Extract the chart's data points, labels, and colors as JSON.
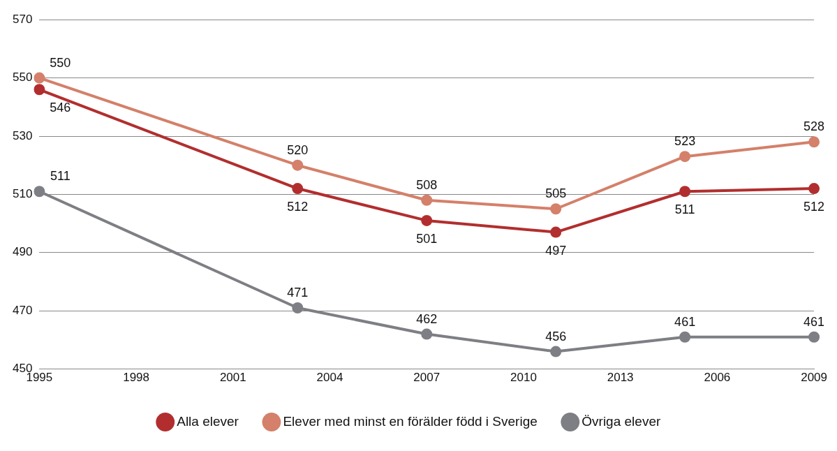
{
  "chart_data": {
    "type": "line",
    "categories": [
      "1995",
      null,
      null,
      "1998",
      null,
      null,
      "2001",
      null,
      null,
      "2004",
      null,
      null,
      "2007",
      null,
      null,
      "2010",
      null,
      null,
      "2013",
      null,
      null,
      "2006",
      null,
      null,
      "2009"
    ],
    "ylim": [
      450,
      570
    ],
    "yticks": [
      450,
      470,
      490,
      510,
      530,
      550,
      570
    ],
    "grid": "y",
    "legend": "bottom",
    "marker": "circle",
    "line_style": "solid",
    "data_labels": true,
    "series": [
      {
        "name": "Alla elever",
        "color": "#b22e2e",
        "values": [
          546,
          null,
          null,
          null,
          null,
          null,
          null,
          null,
          512,
          null,
          null,
          null,
          501,
          null,
          null,
          null,
          497,
          null,
          null,
          null,
          511,
          null,
          null,
          null,
          512
        ]
      },
      {
        "name": "Elever med minst en förälder född i Sverige",
        "color": "#d4806a",
        "values": [
          550,
          null,
          null,
          null,
          null,
          null,
          null,
          null,
          520,
          null,
          null,
          null,
          508,
          null,
          null,
          null,
          505,
          null,
          null,
          null,
          523,
          null,
          null,
          null,
          528
        ]
      },
      {
        "name": "Övriga elever",
        "color": "#7e7f84",
        "values": [
          511,
          null,
          null,
          null,
          null,
          null,
          null,
          null,
          471,
          null,
          null,
          null,
          462,
          null,
          null,
          null,
          456,
          null,
          null,
          null,
          461,
          null,
          null,
          null,
          461
        ]
      }
    ]
  }
}
